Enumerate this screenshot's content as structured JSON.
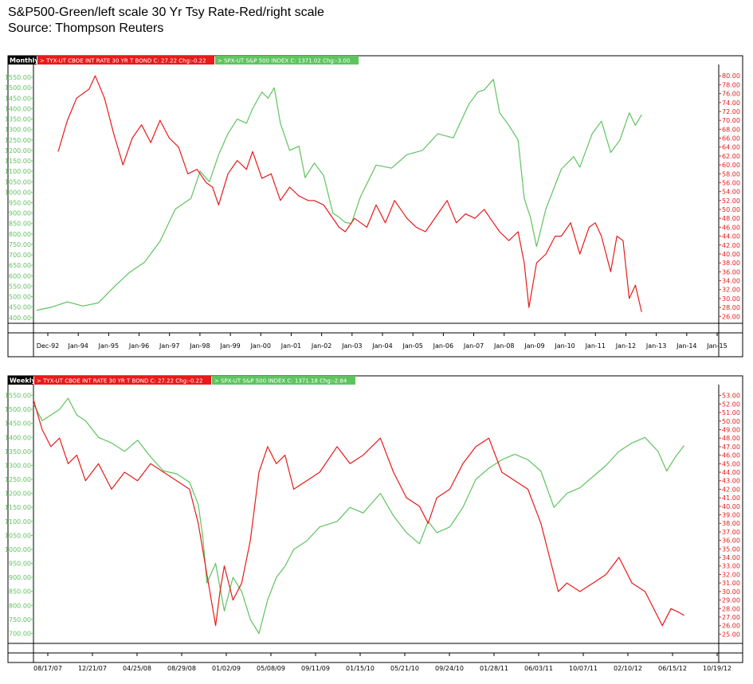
{
  "header": {
    "title": "S&P500-Green/left scale   30 Yr Tsy Rate-Red/right scale",
    "source": "Source: Thompson Reuters"
  },
  "colors": {
    "green": "#5fc35f",
    "red": "#e81a1a",
    "panel_tag": "#000000"
  },
  "chart_data": [
    {
      "type": "line",
      "period_tag": "Monthly",
      "legend": [
        {
          "text": "TYX-UT  CBOE INT RATE 30 YR T BOND  C: 27.22  Chg:-0.22",
          "color": "red"
        },
        {
          "text": "SPX-UT  S&P 500 INDEX  C: 1371.02  Chg:-3.00",
          "color": "green"
        }
      ],
      "x_tick_labels": [
        "Dec-92",
        "Jan-94",
        "Jan-95",
        "Jan-96",
        "Jan-97",
        "Jan-98",
        "Jan-99",
        "Jan-00",
        "Jan-01",
        "Jan-02",
        "Jan-03",
        "Jan-04",
        "Jan-05",
        "Jan-06",
        "Jan-07",
        "Jan-08",
        "Jan-09",
        "Jan-10",
        "Jan-11",
        "Jan-12",
        "Jan-13",
        "Jan-14",
        "Jan-15"
      ],
      "x_range": [
        1992.9,
        2015.1
      ],
      "left_axis": {
        "ylim": [
          380,
          1600
        ],
        "ticks": [
          "1550.00",
          "1500.00",
          "1450.00",
          "1400.00",
          "1350.00",
          "1300.00",
          "1250.00",
          "1200.00",
          "1150.00",
          "1100.00",
          "1050.00",
          "1000.00",
          "950.00",
          "900.00",
          "850.00",
          "800.00",
          "750.00",
          "700.00",
          "650.00",
          "600.00",
          "550.00",
          "500.00",
          "450.00",
          "400.00"
        ]
      },
      "right_axis": {
        "ylim": [
          24.8,
          82
        ],
        "ticks": [
          "80.00",
          "78.00",
          "76.00",
          "74.00",
          "72.00",
          "70.00",
          "68.00",
          "66.00",
          "64.00",
          "62.00",
          "60.00",
          "58.00",
          "56.00",
          "54.00",
          "52.00",
          "50.00",
          "48.00",
          "46.00",
          "44.00",
          "42.00",
          "40.00",
          "38.00",
          "36.00",
          "34.00",
          "32.00",
          "30.00",
          "28.00",
          "26.00"
        ]
      },
      "series": [
        {
          "name": "SPX-UT",
          "color": "green",
          "axis": "left",
          "x": [
            1993.0,
            1993.5,
            1994.0,
            1994.5,
            1995.0,
            1995.5,
            1996.0,
            1996.5,
            1997.0,
            1997.5,
            1998.0,
            1998.3,
            1998.6,
            1998.9,
            1999.2,
            1999.5,
            1999.8,
            2000.0,
            2000.3,
            2000.5,
            2000.7,
            2000.9,
            2001.2,
            2001.5,
            2001.7,
            2002.0,
            2002.3,
            2002.6,
            2002.8,
            2003.0,
            2003.2,
            2003.5,
            2004.0,
            2004.5,
            2005.0,
            2005.5,
            2006.0,
            2006.5,
            2007.0,
            2007.3,
            2007.5,
            2007.8,
            2008.0,
            2008.3,
            2008.6,
            2008.8,
            2009.0,
            2009.2,
            2009.5,
            2010.0,
            2010.4,
            2010.6,
            2011.0,
            2011.3,
            2011.6,
            2011.9,
            2012.2,
            2012.4,
            2012.6
          ],
          "y": [
            435,
            450,
            475,
            455,
            470,
            545,
            615,
            665,
            765,
            920,
            970,
            1100,
            1050,
            1180,
            1280,
            1350,
            1330,
            1400,
            1480,
            1450,
            1500,
            1330,
            1200,
            1220,
            1070,
            1140,
            1080,
            900,
            880,
            855,
            850,
            980,
            1130,
            1115,
            1180,
            1200,
            1280,
            1260,
            1420,
            1480,
            1490,
            1540,
            1380,
            1320,
            1250,
            970,
            880,
            740,
            920,
            1110,
            1170,
            1120,
            1280,
            1340,
            1190,
            1250,
            1380,
            1320,
            1371
          ]
        },
        {
          "name": "TYX-UT",
          "color": "red",
          "axis": "right",
          "x": [
            1993.7,
            1994.0,
            1994.3,
            1994.7,
            1994.9,
            1995.2,
            1995.5,
            1995.8,
            1996.1,
            1996.4,
            1996.7,
            1997.0,
            1997.3,
            1997.6,
            1997.9,
            1998.2,
            1998.5,
            1998.7,
            1998.9,
            1999.2,
            1999.5,
            1999.8,
            2000.0,
            2000.3,
            2000.6,
            2000.9,
            2001.2,
            2001.5,
            2001.8,
            2002.0,
            2002.3,
            2002.5,
            2002.8,
            2003.0,
            2003.3,
            2003.5,
            2003.7,
            2004.0,
            2004.3,
            2004.6,
            2005.0,
            2005.3,
            2005.6,
            2006.0,
            2006.3,
            2006.6,
            2006.9,
            2007.2,
            2007.5,
            2007.8,
            2008.0,
            2008.3,
            2008.6,
            2008.8,
            2008.95,
            2009.2,
            2009.5,
            2009.8,
            2010.0,
            2010.3,
            2010.6,
            2010.9,
            2011.1,
            2011.3,
            2011.6,
            2011.8,
            2012.0,
            2012.2,
            2012.4,
            2012.6
          ],
          "y": [
            63,
            70,
            75,
            77,
            80,
            75,
            67,
            60,
            66,
            69,
            65,
            70,
            66,
            64,
            58,
            59,
            56,
            55,
            51,
            58,
            61,
            59,
            63,
            57,
            58,
            52,
            55,
            53,
            52,
            52,
            51,
            49,
            46,
            45,
            48,
            47,
            46,
            51,
            47,
            52,
            48,
            46,
            45,
            49,
            52,
            47,
            49,
            48,
            50,
            47,
            45,
            43,
            45,
            38,
            28,
            38,
            40,
            44,
            44,
            47,
            40,
            46,
            47,
            44,
            36,
            44,
            43,
            30,
            33,
            27
          ]
        }
      ]
    },
    {
      "type": "line",
      "period_tag": "Weekly",
      "legend": [
        {
          "text": "TYX-UT  CBOE INT RATE 30 YR T BOND  C: 27.22  Chg:-0.22",
          "color": "red"
        },
        {
          "text": "SPX-UT  S&P 500 INDEX  C: 1371.18  Chg:-2.84",
          "color": "green"
        }
      ],
      "x_tick_labels": [
        "08/17/07",
        "12/21/07",
        "04/25/08",
        "08/29/08",
        "01/02/09",
        "05/08/09",
        "09/11/09",
        "01/15/10",
        "05/21/10",
        "09/24/10",
        "01/28/11",
        "06/03/11",
        "10/07/11",
        "02/10/12",
        "06/15/12",
        "10/19/12"
      ],
      "x_range": [
        0,
        15.8
      ],
      "left_axis": {
        "ylim": [
          670,
          1580
        ],
        "ticks": [
          "1550.00",
          "1500.00",
          "1450.00",
          "1400.00",
          "1350.00",
          "1300.00",
          "1250.00",
          "1200.00",
          "1150.00",
          "1100.00",
          "1050.00",
          "1000.00",
          "950.00",
          "900.00",
          "850.00",
          "800.00",
          "750.00",
          "700.00"
        ]
      },
      "right_axis": {
        "ylim": [
          24.1,
          54
        ],
        "ticks": [
          "53.00",
          "52.00",
          "51.00",
          "50.00",
          "49.00",
          "48.00",
          "47.00",
          "46.00",
          "45.00",
          "44.00",
          "43.00",
          "42.00",
          "41.00",
          "40.00",
          "39.00",
          "38.00",
          "37.00",
          "36.00",
          "35.00",
          "34.00",
          "33.00",
          "32.00",
          "31.00",
          "30.00",
          "29.00",
          "28.00",
          "27.00",
          "26.00",
          "25.00"
        ]
      },
      "series": [
        {
          "name": "SPX-UT",
          "color": "green",
          "axis": "left",
          "x": [
            0.0,
            0.2,
            0.4,
            0.6,
            0.8,
            1.0,
            1.2,
            1.5,
            1.8,
            2.1,
            2.4,
            2.7,
            3.0,
            3.3,
            3.6,
            3.8,
            3.9,
            4.0,
            4.2,
            4.4,
            4.6,
            4.8,
            5.0,
            5.2,
            5.4,
            5.6,
            5.8,
            6.0,
            6.3,
            6.6,
            7.0,
            7.3,
            7.6,
            8.0,
            8.3,
            8.6,
            8.9,
            9.1,
            9.3,
            9.6,
            9.9,
            10.2,
            10.5,
            10.8,
            11.1,
            11.4,
            11.7,
            12.0,
            12.3,
            12.6,
            12.9,
            13.2,
            13.5,
            13.8,
            14.1,
            14.4,
            14.6,
            14.8,
            15.0
          ],
          "y": [
            1520,
            1460,
            1480,
            1500,
            1540,
            1480,
            1460,
            1400,
            1380,
            1350,
            1390,
            1330,
            1280,
            1270,
            1240,
            1160,
            1050,
            880,
            950,
            780,
            900,
            850,
            750,
            700,
            820,
            900,
            940,
            1000,
            1030,
            1080,
            1100,
            1150,
            1130,
            1200,
            1120,
            1060,
            1020,
            1100,
            1060,
            1080,
            1150,
            1250,
            1290,
            1320,
            1340,
            1320,
            1280,
            1150,
            1200,
            1220,
            1260,
            1300,
            1350,
            1380,
            1400,
            1350,
            1280,
            1330,
            1371
          ]
        },
        {
          "name": "TYX-UT",
          "color": "red",
          "axis": "right",
          "x": [
            0.0,
            0.2,
            0.4,
            0.6,
            0.8,
            1.0,
            1.2,
            1.5,
            1.8,
            2.1,
            2.4,
            2.7,
            3.0,
            3.3,
            3.6,
            3.8,
            4.0,
            4.2,
            4.3,
            4.4,
            4.6,
            4.8,
            5.0,
            5.2,
            5.4,
            5.6,
            5.8,
            6.0,
            6.3,
            6.6,
            7.0,
            7.3,
            7.6,
            8.0,
            8.3,
            8.6,
            8.9,
            9.1,
            9.3,
            9.6,
            9.9,
            10.2,
            10.5,
            10.8,
            11.1,
            11.4,
            11.7,
            11.9,
            12.1,
            12.3,
            12.6,
            12.9,
            13.2,
            13.5,
            13.8,
            14.1,
            14.4,
            14.5,
            14.7,
            14.9,
            15.0
          ],
          "y": [
            52.5,
            49,
            47,
            48,
            45,
            46,
            43,
            45,
            42,
            44,
            43,
            45,
            44,
            43,
            42,
            38,
            32,
            26,
            30,
            33,
            29,
            31,
            36,
            44,
            47,
            45,
            46,
            42,
            43,
            44,
            47,
            45,
            46,
            48,
            44,
            41,
            40,
            38,
            41,
            42,
            45,
            47,
            48,
            44,
            43,
            42,
            38,
            34,
            30,
            31,
            30,
            31,
            32,
            34,
            31,
            30,
            27,
            26,
            28,
            27.5,
            27.2
          ]
        }
      ]
    }
  ]
}
